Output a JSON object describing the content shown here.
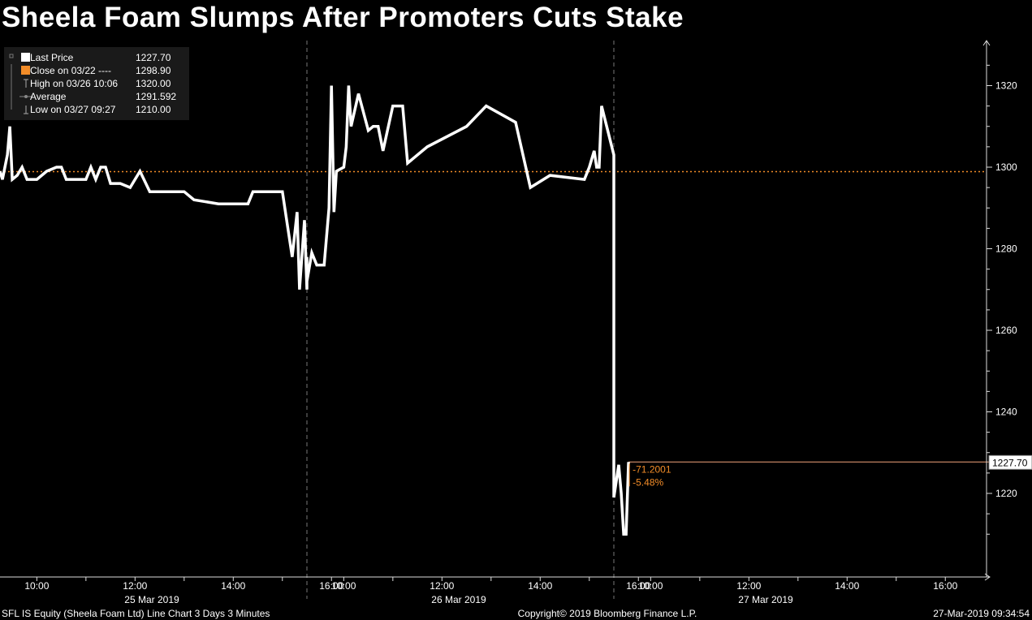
{
  "title": "Sheela Foam Slumps After Promoters Cuts Stake",
  "legend": [
    {
      "label": "Last Price",
      "value": "1227.70",
      "icon": "white-square-icon"
    },
    {
      "label": "Close on 03/22 ----",
      "value": "1298.90",
      "icon": "orange-square-icon"
    },
    {
      "label": "High on 03/26 10:06",
      "value": "1320.00",
      "icon": "high-marker-icon"
    },
    {
      "label": "Average",
      "value": "1291.592",
      "icon": "average-line-icon"
    },
    {
      "label": "Low on 03/27 09:27",
      "value": "1210.00",
      "icon": "low-marker-icon"
    }
  ],
  "last_price_tag": "1227.70",
  "change_abs": "-71.2001",
  "change_pct": "-5.48%",
  "time_ticks": [
    "10:00",
    "12:00",
    "14:00",
    "16:00",
    "10:00",
    "12:00",
    "14:00",
    "16:00",
    "10:00",
    "12:00",
    "14:00",
    "16:00"
  ],
  "date_labels": [
    "25 Mar 2019",
    "26 Mar 2019",
    "27 Mar 2019"
  ],
  "footer": {
    "left": "SFL IS Equity (Sheela Foam Ltd) Line Chart 3 Days 3 Minutes",
    "center": "Copyright© 2019 Bloomberg Finance L.P.",
    "right": "27-Mar-2019 09:34:54"
  },
  "colors": {
    "background": "#000000",
    "line": "#ffffff",
    "close_ref": "#f28c28",
    "last_price_line": "#f2a37a"
  },
  "chart_data": {
    "type": "line",
    "title": "Sheela Foam Slumps After Promoters Cuts Stake",
    "xlabel": "",
    "ylabel": "",
    "ylim": [
      1200,
      1330
    ],
    "y_ticks": [
      1220,
      1240,
      1260,
      1280,
      1300,
      1320
    ],
    "reference_close": 1298.9,
    "last_price": 1227.7,
    "series": [
      {
        "name": "Last Price",
        "points": [
          {
            "day": "25 Mar 2019",
            "time": "09:15",
            "price": 1299
          },
          {
            "day": "25 Mar 2019",
            "time": "09:18",
            "price": 1297
          },
          {
            "day": "25 Mar 2019",
            "time": "09:24",
            "price": 1303
          },
          {
            "day": "25 Mar 2019",
            "time": "09:27",
            "price": 1310
          },
          {
            "day": "25 Mar 2019",
            "time": "09:30",
            "price": 1297
          },
          {
            "day": "25 Mar 2019",
            "time": "09:36",
            "price": 1298
          },
          {
            "day": "25 Mar 2019",
            "time": "09:42",
            "price": 1300
          },
          {
            "day": "25 Mar 2019",
            "time": "09:48",
            "price": 1297
          },
          {
            "day": "25 Mar 2019",
            "time": "10:00",
            "price": 1297
          },
          {
            "day": "25 Mar 2019",
            "time": "10:12",
            "price": 1299
          },
          {
            "day": "25 Mar 2019",
            "time": "10:24",
            "price": 1300
          },
          {
            "day": "25 Mar 2019",
            "time": "10:30",
            "price": 1300
          },
          {
            "day": "25 Mar 2019",
            "time": "10:36",
            "price": 1297
          },
          {
            "day": "25 Mar 2019",
            "time": "11:00",
            "price": 1297
          },
          {
            "day": "25 Mar 2019",
            "time": "11:06",
            "price": 1300
          },
          {
            "day": "25 Mar 2019",
            "time": "11:12",
            "price": 1297
          },
          {
            "day": "25 Mar 2019",
            "time": "11:18",
            "price": 1300
          },
          {
            "day": "25 Mar 2019",
            "time": "11:24",
            "price": 1300
          },
          {
            "day": "25 Mar 2019",
            "time": "11:30",
            "price": 1296
          },
          {
            "day": "25 Mar 2019",
            "time": "11:36",
            "price": 1296
          },
          {
            "day": "25 Mar 2019",
            "time": "11:42",
            "price": 1296
          },
          {
            "day": "25 Mar 2019",
            "time": "11:54",
            "price": 1295
          },
          {
            "day": "25 Mar 2019",
            "time": "12:00",
            "price": 1297
          },
          {
            "day": "25 Mar 2019",
            "time": "12:06",
            "price": 1299
          },
          {
            "day": "25 Mar 2019",
            "time": "12:18",
            "price": 1294
          },
          {
            "day": "25 Mar 2019",
            "time": "13:00",
            "price": 1294
          },
          {
            "day": "25 Mar 2019",
            "time": "13:12",
            "price": 1292
          },
          {
            "day": "25 Mar 2019",
            "time": "13:42",
            "price": 1291
          },
          {
            "day": "25 Mar 2019",
            "time": "14:18",
            "price": 1291
          },
          {
            "day": "25 Mar 2019",
            "time": "14:24",
            "price": 1294
          },
          {
            "day": "25 Mar 2019",
            "time": "15:00",
            "price": 1294
          },
          {
            "day": "25 Mar 2019",
            "time": "15:06",
            "price": 1286
          },
          {
            "day": "25 Mar 2019",
            "time": "15:12",
            "price": 1278
          },
          {
            "day": "25 Mar 2019",
            "time": "15:18",
            "price": 1289
          },
          {
            "day": "25 Mar 2019",
            "time": "15:21",
            "price": 1270
          },
          {
            "day": "25 Mar 2019",
            "time": "15:27",
            "price": 1287
          },
          {
            "day": "25 Mar 2019",
            "time": "15:30",
            "price": 1270
          },
          {
            "day": "25 Mar 2019",
            "time": "15:42",
            "price": 1278
          },
          {
            "day": "25 Mar 2019",
            "time": "16:00",
            "price": 1278
          },
          {
            "day": "25 Mar 2019",
            "time": "16:30",
            "price": 1278
          },
          {
            "day": "26 Mar 2019",
            "time": "09:15",
            "price": 1272
          },
          {
            "day": "26 Mar 2019",
            "time": "09:21",
            "price": 1279
          },
          {
            "day": "26 Mar 2019",
            "time": "09:27",
            "price": 1276
          },
          {
            "day": "26 Mar 2019",
            "time": "09:36",
            "price": 1276
          },
          {
            "day": "26 Mar 2019",
            "time": "09:42",
            "price": 1290
          },
          {
            "day": "26 Mar 2019",
            "time": "09:45",
            "price": 1320
          },
          {
            "day": "26 Mar 2019",
            "time": "09:48",
            "price": 1289
          },
          {
            "day": "26 Mar 2019",
            "time": "09:51",
            "price": 1299
          },
          {
            "day": "26 Mar 2019",
            "time": "10:00",
            "price": 1300
          },
          {
            "day": "26 Mar 2019",
            "time": "10:03",
            "price": 1305
          },
          {
            "day": "26 Mar 2019",
            "time": "10:06",
            "price": 1320
          },
          {
            "day": "26 Mar 2019",
            "time": "10:09",
            "price": 1310
          },
          {
            "day": "26 Mar 2019",
            "time": "10:18",
            "price": 1318
          },
          {
            "day": "26 Mar 2019",
            "time": "10:30",
            "price": 1309
          },
          {
            "day": "26 Mar 2019",
            "time": "10:36",
            "price": 1310
          },
          {
            "day": "26 Mar 2019",
            "time": "10:42",
            "price": 1310
          },
          {
            "day": "26 Mar 2019",
            "time": "10:48",
            "price": 1304
          },
          {
            "day": "26 Mar 2019",
            "time": "11:00",
            "price": 1315
          },
          {
            "day": "26 Mar 2019",
            "time": "11:12",
            "price": 1315
          },
          {
            "day": "26 Mar 2019",
            "time": "11:18",
            "price": 1301
          },
          {
            "day": "26 Mar 2019",
            "time": "11:42",
            "price": 1305
          },
          {
            "day": "26 Mar 2019",
            "time": "12:30",
            "price": 1310
          },
          {
            "day": "26 Mar 2019",
            "time": "12:54",
            "price": 1315
          },
          {
            "day": "26 Mar 2019",
            "time": "13:30",
            "price": 1311
          },
          {
            "day": "26 Mar 2019",
            "time": "13:48",
            "price": 1295
          },
          {
            "day": "26 Mar 2019",
            "time": "14:12",
            "price": 1298
          },
          {
            "day": "26 Mar 2019",
            "time": "14:54",
            "price": 1297
          },
          {
            "day": "26 Mar 2019",
            "time": "15:00",
            "price": 1300
          },
          {
            "day": "26 Mar 2019",
            "time": "15:06",
            "price": 1304
          },
          {
            "day": "26 Mar 2019",
            "time": "15:09",
            "price": 1300
          },
          {
            "day": "26 Mar 2019",
            "time": "15:12",
            "price": 1300
          },
          {
            "day": "26 Mar 2019",
            "time": "15:15",
            "price": 1315
          },
          {
            "day": "26 Mar 2019",
            "time": "16:30",
            "price": 1303
          },
          {
            "day": "27 Mar 2019",
            "time": "09:15",
            "price": 1219
          },
          {
            "day": "27 Mar 2019",
            "time": "09:21",
            "price": 1227
          },
          {
            "day": "27 Mar 2019",
            "time": "09:24",
            "price": 1220
          },
          {
            "day": "27 Mar 2019",
            "time": "09:27",
            "price": 1210
          },
          {
            "day": "27 Mar 2019",
            "time": "09:30",
            "price": 1210
          },
          {
            "day": "27 Mar 2019",
            "time": "09:33",
            "price": 1227.7
          }
        ]
      }
    ]
  }
}
